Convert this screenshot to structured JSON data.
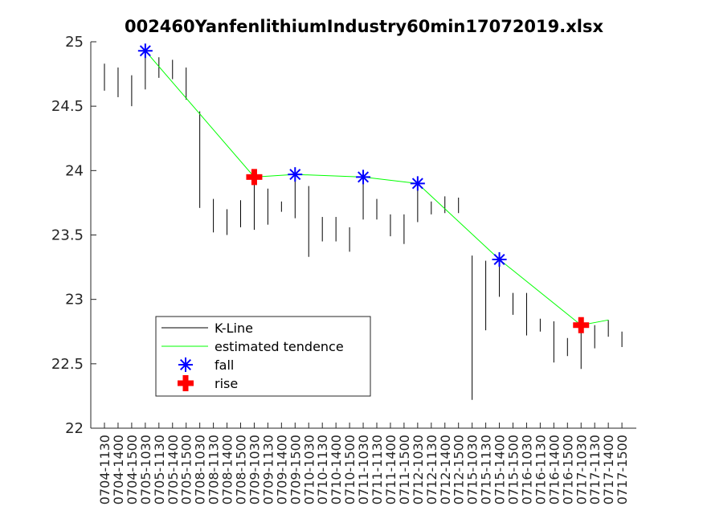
{
  "chart_data": {
    "type": "candlestick-range",
    "title": "002460YanfenlithiumIndustry60min17072019.xlsx",
    "xlabel": "",
    "ylabel": "",
    "ylim": [
      22,
      25
    ],
    "yticks": [
      22,
      22.5,
      23,
      23.5,
      24,
      24.5,
      25
    ],
    "categories": [
      "0704-1130",
      "0704-1400",
      "0704-1500",
      "0705-1030",
      "0705-1130",
      "0705-1400",
      "0705-1500",
      "0708-1030",
      "0708-1130",
      "0708-1400",
      "0708-1500",
      "0709-1030",
      "0709-1130",
      "0709-1400",
      "0709-1500",
      "0710-1030",
      "0710-1130",
      "0710-1400",
      "0710-1500",
      "0711-1030",
      "0711-1130",
      "0711-1400",
      "0711-1500",
      "0712-1030",
      "0712-1130",
      "0712-1400",
      "0712-1500",
      "0715-1030",
      "0715-1130",
      "0715-1400",
      "0715-1500",
      "0716-1030",
      "0716-1130",
      "0716-1400",
      "0716-1500",
      "0717-1030",
      "0717-1130",
      "0717-1400",
      "0717-1500"
    ],
    "kline_low": [
      24.62,
      24.57,
      24.5,
      24.63,
      24.72,
      24.71,
      24.55,
      23.71,
      23.52,
      23.5,
      23.56,
      23.54,
      23.58,
      23.68,
      23.63,
      23.33,
      23.45,
      23.45,
      23.37,
      23.62,
      23.62,
      23.49,
      23.43,
      23.6,
      23.66,
      23.67,
      23.67,
      22.22,
      22.76,
      23.02,
      22.88,
      22.72,
      22.75,
      22.51,
      22.56,
      22.46,
      22.62,
      22.71,
      22.63
    ],
    "kline_high": [
      24.83,
      24.8,
      24.74,
      24.95,
      24.88,
      24.86,
      24.8,
      24.46,
      23.78,
      23.7,
      23.77,
      23.98,
      23.86,
      23.76,
      23.96,
      23.88,
      23.64,
      23.64,
      23.56,
      23.95,
      23.78,
      23.66,
      23.66,
      23.92,
      23.76,
      23.8,
      23.79,
      23.34,
      23.3,
      23.33,
      23.05,
      23.05,
      22.85,
      22.83,
      22.7,
      22.84,
      22.8,
      22.84,
      22.75
    ],
    "series": [
      {
        "name": "estimated tendence",
        "color": "#00ff00",
        "points": [
          {
            "index": 3,
            "value": 24.93
          },
          {
            "index": 11,
            "value": 23.95
          },
          {
            "index": 14,
            "value": 23.97
          },
          {
            "index": 19,
            "value": 23.95
          },
          {
            "index": 23,
            "value": 23.9
          },
          {
            "index": 29,
            "value": 23.31
          },
          {
            "index": 35,
            "value": 22.8
          },
          {
            "index": 37,
            "value": 22.84
          }
        ]
      },
      {
        "name": "fall",
        "color": "#0000ff",
        "marker": "asterisk",
        "points": [
          {
            "index": 3,
            "value": 24.93
          },
          {
            "index": 14,
            "value": 23.97
          },
          {
            "index": 19,
            "value": 23.95
          },
          {
            "index": 23,
            "value": 23.9
          },
          {
            "index": 29,
            "value": 23.31
          }
        ]
      },
      {
        "name": "rise",
        "color": "#ff0000",
        "marker": "plus",
        "points": [
          {
            "index": 11,
            "value": 23.95
          },
          {
            "index": 35,
            "value": 22.8
          }
        ]
      }
    ],
    "legend": {
      "placement": "lower-left",
      "entries": [
        {
          "label": "K-Line",
          "marker": "line",
          "color": "#000000"
        },
        {
          "label": "estimated tendence",
          "marker": "line",
          "color": "#00ff00"
        },
        {
          "label": "fall",
          "marker": "asterisk",
          "color": "#0000ff"
        },
        {
          "label": "rise",
          "marker": "plus",
          "color": "#ff0000"
        }
      ]
    },
    "grid": false
  }
}
